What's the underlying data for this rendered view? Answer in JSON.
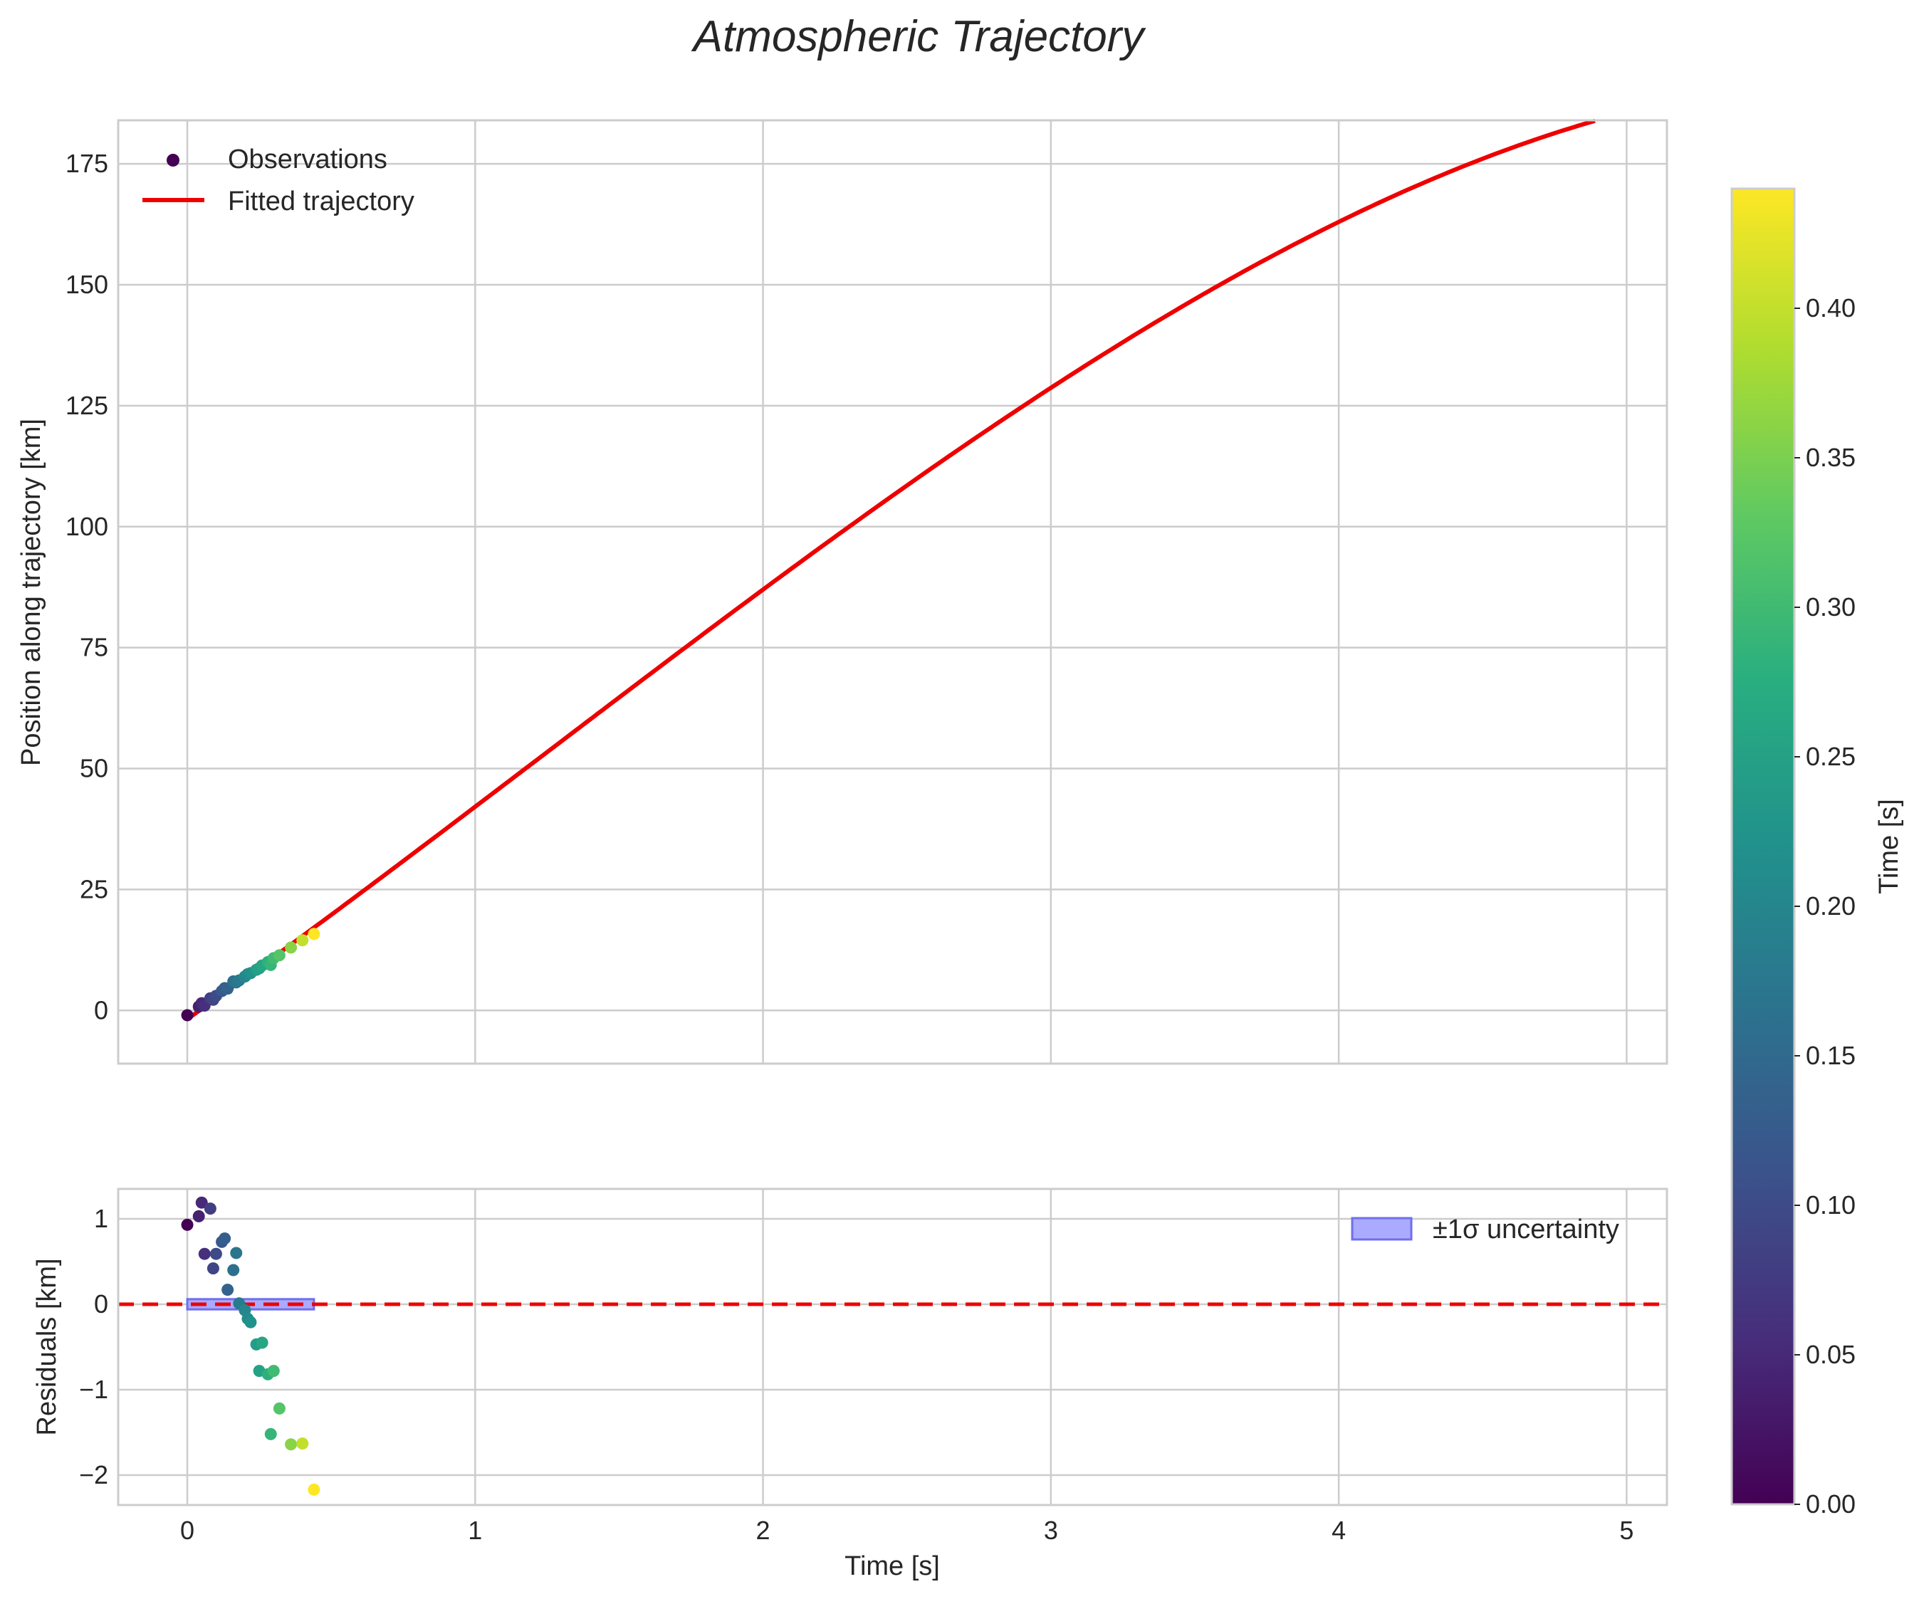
{
  "title": "Atmospheric Trajectory",
  "colors": {
    "fit": "#ee0000",
    "band_fill": "#aaaaff",
    "band_edge": "#6f6fee",
    "grid": "#cccccc",
    "text": "#262626"
  },
  "chart_data": [
    {
      "panel": "main",
      "type": "scatter",
      "title": "Atmospheric Trajectory",
      "xlabel": "Time [s]",
      "ylabel": "Position along trajectory [km]",
      "xlim": [
        -0.24,
        5.14
      ],
      "ylim": [
        -11,
        184
      ],
      "xticks": [
        0,
        1,
        2,
        3,
        4,
        5
      ],
      "xtick_labels": [
        "0",
        "1",
        "2",
        "3",
        "4",
        "5"
      ],
      "yticks": [
        0,
        25,
        50,
        75,
        100,
        125,
        150,
        175
      ],
      "ytick_labels": [
        "0",
        "25",
        "50",
        "75",
        "100",
        "125",
        "150",
        "175"
      ],
      "grid": true,
      "legend_position": "top-left",
      "legend": [
        "Observations",
        "Fitted trajectory"
      ],
      "observations": {
        "name": "Observations",
        "colormap": "viridis",
        "t": [
          0.0,
          0.04,
          0.05,
          0.06,
          0.08,
          0.09,
          0.1,
          0.12,
          0.13,
          0.14,
          0.16,
          0.17,
          0.18,
          0.2,
          0.21,
          0.22,
          0.24,
          0.25,
          0.26,
          0.28,
          0.29,
          0.3,
          0.32,
          0.36,
          0.4,
          0.44
        ],
        "position": [
          -1.0,
          0.8,
          1.5,
          1.0,
          2.5,
          2.2,
          3.0,
          4.0,
          4.6,
          4.5,
          6.0,
          5.8,
          6.2,
          7.0,
          7.5,
          7.7,
          8.4,
          8.7,
          9.3,
          10.0,
          9.4,
          10.8,
          11.4,
          13.0,
          14.5,
          15.8
        ]
      },
      "fit": {
        "name": "Fitted trajectory",
        "t0": 0.0,
        "t1": 4.89,
        "coefficients": [
          -1.8,
          42.0,
          2.6,
          -0.7
        ],
        "form": "position = c0 + c1*t + c2*t^2 + c3*t^3"
      }
    },
    {
      "panel": "residuals",
      "type": "scatter",
      "xlabel": "Time [s]",
      "ylabel": "Residuals [km]",
      "xlim": [
        -0.24,
        5.14
      ],
      "ylim": [
        -2.35,
        1.35
      ],
      "xticks": [
        0,
        1,
        2,
        3,
        4,
        5
      ],
      "xtick_labels": [
        "0",
        "1",
        "2",
        "3",
        "4",
        "5"
      ],
      "yticks": [
        -2,
        -1,
        0,
        1
      ],
      "ytick_labels": [
        "−2",
        "−1",
        "0",
        "1"
      ],
      "grid": true,
      "legend_position": "top-right",
      "legend": [
        "±1σ uncertainty"
      ],
      "zero_line": 0,
      "band": {
        "name": "±1σ uncertainty",
        "t0": 0.0,
        "t1": 0.44,
        "lower": -0.06,
        "upper": 0.06
      },
      "residuals": {
        "t": [
          0.0,
          0.04,
          0.05,
          0.06,
          0.08,
          0.09,
          0.1,
          0.12,
          0.13,
          0.14,
          0.16,
          0.17,
          0.18,
          0.2,
          0.21,
          0.22,
          0.24,
          0.25,
          0.26,
          0.28,
          0.29,
          0.3,
          0.32,
          0.36,
          0.4,
          0.44
        ],
        "residual": [
          0.93,
          1.03,
          1.19,
          0.59,
          1.12,
          0.42,
          0.59,
          0.73,
          0.77,
          0.17,
          0.4,
          0.6,
          0.01,
          -0.07,
          -0.17,
          -0.21,
          -0.47,
          -0.78,
          -0.45,
          -0.82,
          -1.52,
          -0.78,
          -1.22,
          -1.64,
          -1.63,
          -2.17
        ]
      }
    },
    {
      "panel": "colorbar",
      "type": "colorbar",
      "label": "Time [s]",
      "range": [
        0.0,
        0.44
      ],
      "ticks": [
        0.0,
        0.05,
        0.1,
        0.15,
        0.2,
        0.25,
        0.3,
        0.35,
        0.4
      ],
      "tick_labels": [
        "0.00",
        "0.05",
        "0.10",
        "0.15",
        "0.20",
        "0.25",
        "0.30",
        "0.35",
        "0.40"
      ]
    }
  ]
}
